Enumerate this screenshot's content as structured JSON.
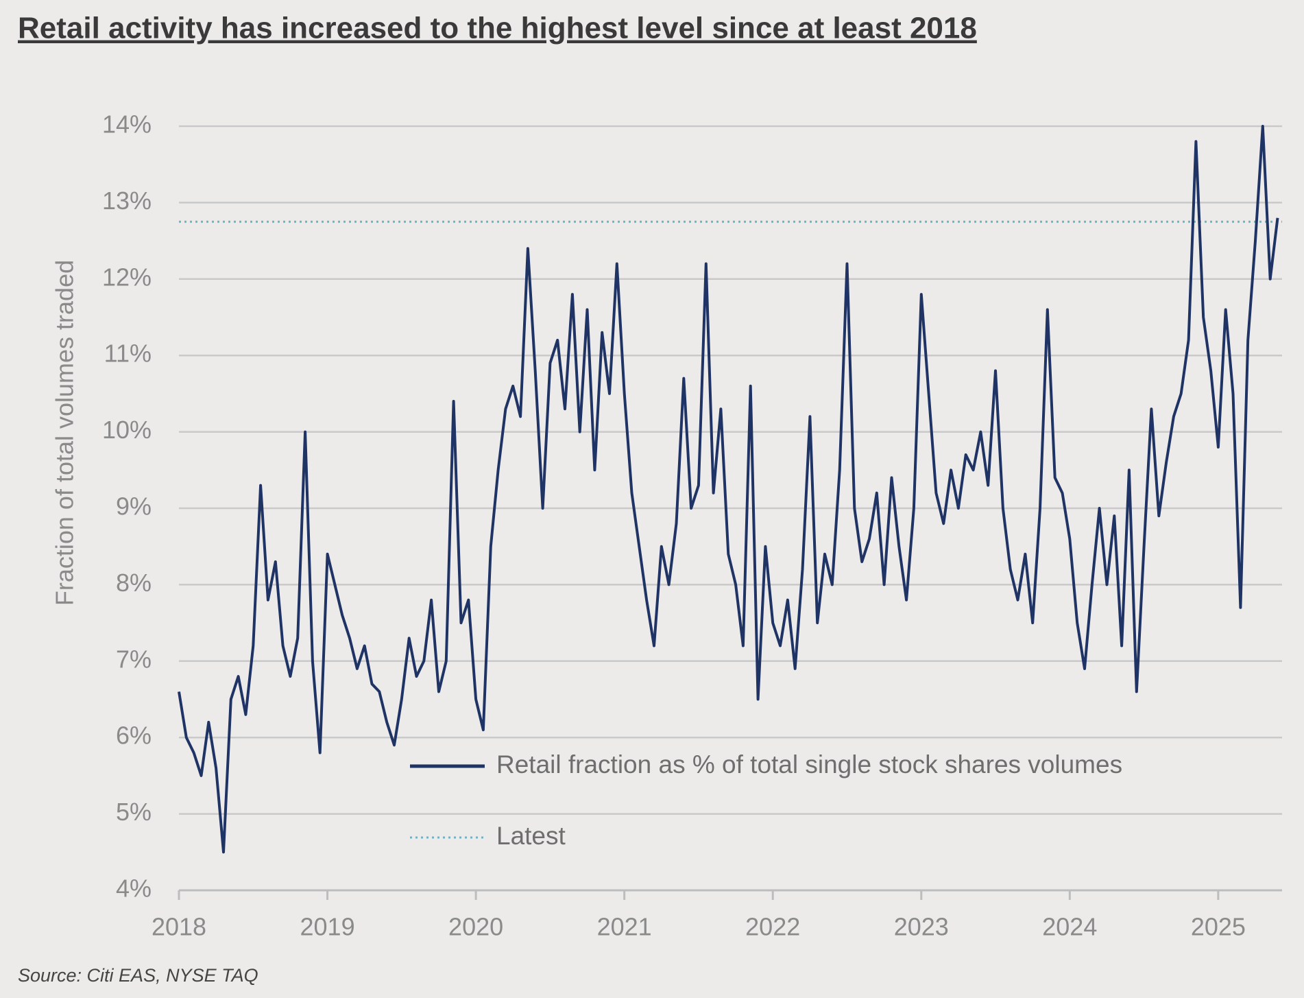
{
  "chart_data": {
    "type": "line",
    "title": "Retail activity has increased to the highest level since at least 2018",
    "y_label": "Fraction of total volumes traded",
    "source": "Source: Citi EAS, NYSE TAQ",
    "x": [
      2018,
      2018.05,
      2018.1,
      2018.15,
      2018.2,
      2018.25,
      2018.3,
      2018.35,
      2018.4,
      2018.45,
      2018.5,
      2018.55,
      2018.6,
      2018.65,
      2018.7,
      2018.75,
      2018.8,
      2018.85,
      2018.9,
      2018.95,
      2019,
      2019.05,
      2019.1,
      2019.15,
      2019.2,
      2019.25,
      2019.3,
      2019.35,
      2019.4,
      2019.45,
      2019.5,
      2019.55,
      2019.6,
      2019.65,
      2019.7,
      2019.75,
      2019.8,
      2019.85,
      2019.9,
      2019.95,
      2020,
      2020.05,
      2020.1,
      2020.15,
      2020.2,
      2020.25,
      2020.3,
      2020.35,
      2020.4,
      2020.45,
      2020.5,
      2020.55,
      2020.6,
      2020.65,
      2020.7,
      2020.75,
      2020.8,
      2020.85,
      2020.9,
      2020.95,
      2021,
      2021.05,
      2021.1,
      2021.15,
      2021.2,
      2021.25,
      2021.3,
      2021.35,
      2021.4,
      2021.45,
      2021.5,
      2021.55,
      2021.6,
      2021.65,
      2021.7,
      2021.75,
      2021.8,
      2021.85,
      2021.9,
      2021.95,
      2022,
      2022.05,
      2022.1,
      2022.15,
      2022.2,
      2022.25,
      2022.3,
      2022.35,
      2022.4,
      2022.45,
      2022.5,
      2022.55,
      2022.6,
      2022.65,
      2022.7,
      2022.75,
      2022.8,
      2022.85,
      2022.9,
      2022.95,
      2023,
      2023.05,
      2023.1,
      2023.15,
      2023.2,
      2023.25,
      2023.3,
      2023.35,
      2023.4,
      2023.45,
      2023.5,
      2023.55,
      2023.6,
      2023.65,
      2023.7,
      2023.75,
      2023.8,
      2023.85,
      2023.9,
      2023.95,
      2024,
      2024.05,
      2024.1,
      2024.15,
      2024.2,
      2024.25,
      2024.3,
      2024.35,
      2024.4,
      2024.45,
      2024.5,
      2024.55,
      2024.6,
      2024.65,
      2024.7,
      2024.75,
      2024.8,
      2024.85,
      2024.9,
      2024.95,
      2025,
      2025.05,
      2025.1,
      2025.15,
      2025.2,
      2025.25,
      2025.3,
      2025.35,
      2025.4
    ],
    "series": [
      {
        "name": "Retail fraction as % of total single stock shares volumes",
        "color": "#1f3464",
        "values": [
          6.6,
          6.0,
          5.8,
          5.5,
          6.2,
          5.6,
          4.5,
          6.5,
          6.8,
          6.3,
          7.2,
          9.3,
          7.8,
          8.3,
          7.2,
          6.8,
          7.3,
          10.0,
          7.0,
          5.8,
          8.4,
          8.0,
          7.6,
          7.3,
          6.9,
          7.2,
          6.7,
          6.6,
          6.2,
          5.9,
          6.5,
          7.3,
          6.8,
          7.0,
          7.8,
          6.6,
          7.0,
          10.4,
          7.5,
          7.8,
          6.5,
          6.1,
          8.5,
          9.5,
          10.3,
          10.6,
          10.2,
          12.4,
          10.8,
          9.0,
          10.9,
          11.2,
          10.3,
          11.8,
          10.0,
          11.6,
          9.5,
          11.3,
          10.5,
          12.2,
          10.5,
          9.2,
          8.5,
          7.8,
          7.2,
          8.5,
          8.0,
          8.8,
          10.7,
          9.0,
          9.3,
          12.2,
          9.2,
          10.3,
          8.4,
          8.0,
          7.2,
          10.6,
          6.5,
          8.5,
          7.5,
          7.2,
          7.8,
          6.9,
          8.2,
          10.2,
          7.5,
          8.4,
          8.0,
          9.5,
          12.2,
          9.0,
          8.3,
          8.6,
          9.2,
          8.0,
          9.4,
          8.5,
          7.8,
          9.0,
          11.8,
          10.5,
          9.2,
          8.8,
          9.5,
          9.0,
          9.7,
          9.5,
          10.0,
          9.3,
          10.8,
          9.0,
          8.2,
          7.8,
          8.4,
          7.5,
          9.0,
          11.6,
          9.4,
          9.2,
          8.6,
          7.5,
          6.9,
          8.0,
          9.0,
          8.0,
          8.9,
          7.2,
          9.5,
          6.6,
          8.5,
          10.3,
          8.9,
          9.6,
          10.2,
          10.5,
          11.2,
          13.8,
          11.5,
          10.8,
          9.8,
          11.6,
          10.5,
          7.7,
          11.2,
          12.5,
          14.0,
          12.0,
          12.8
        ]
      }
    ],
    "reference_lines": [
      {
        "name": "Latest",
        "value": 12.75,
        "color": "#6fb3c4"
      }
    ],
    "xlim": [
      2018,
      2025.43
    ],
    "xticks": [
      2018,
      2019,
      2020,
      2021,
      2022,
      2023,
      2024,
      2025
    ],
    "ylim": [
      4,
      14
    ],
    "yticks": [
      {
        "value": 4,
        "label": "4%"
      },
      {
        "value": 5,
        "label": "5%"
      },
      {
        "value": 6,
        "label": "6%"
      },
      {
        "value": 7,
        "label": "7%"
      },
      {
        "value": 8,
        "label": "8%"
      },
      {
        "value": 9,
        "label": "9%"
      },
      {
        "value": 10,
        "label": "10%"
      },
      {
        "value": 11,
        "label": "11%"
      },
      {
        "value": 12,
        "label": "12%"
      },
      {
        "value": 13,
        "label": "13%"
      },
      {
        "value": 14,
        "label": "14%"
      }
    ],
    "grid": true
  }
}
